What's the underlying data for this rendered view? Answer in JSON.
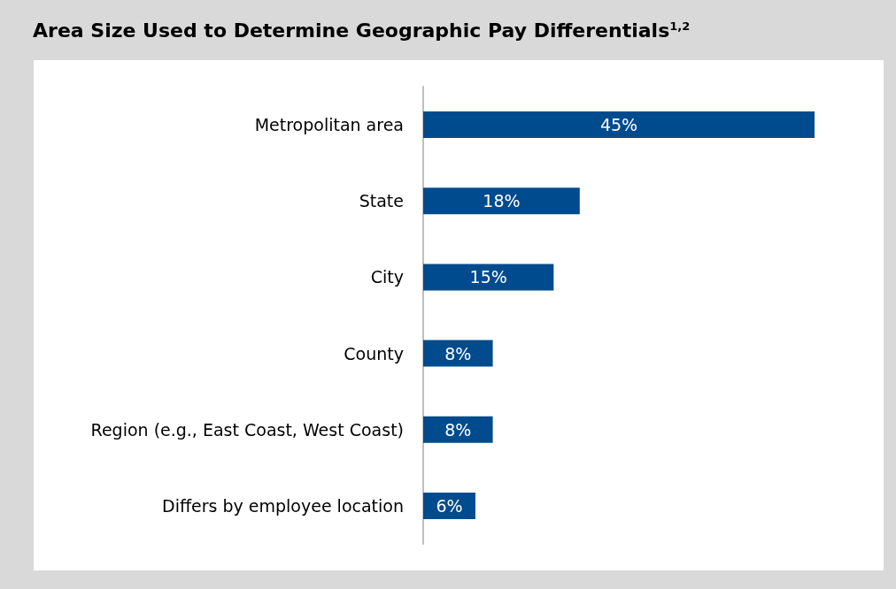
{
  "chart_data": {
    "type": "bar",
    "orientation": "horizontal",
    "title": "Area Size Used to Determine Geographic Pay Differentials$^{1,2}$",
    "categories": [
      "Metropolitan area",
      "State",
      "City",
      "County",
      "Region (e.g., East Coast, West Coast)",
      "Differs by employee location"
    ],
    "values": [
      45,
      18,
      15,
      8,
      8,
      6
    ],
    "value_labels": [
      "45%",
      "18%",
      "15%",
      "8%",
      "8%",
      "6%"
    ],
    "color": "#004b8d"
  }
}
